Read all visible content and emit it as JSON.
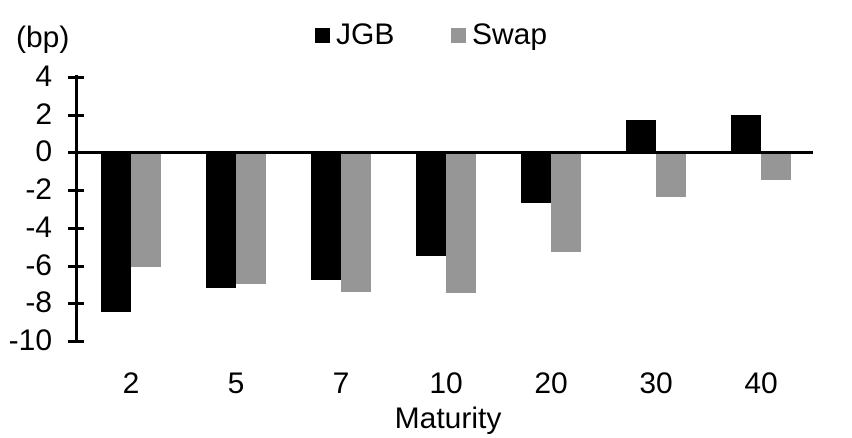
{
  "chart_data": {
    "type": "bar",
    "title": "",
    "unit_label": "(bp)",
    "xlabel": "Maturity",
    "categories": [
      "2",
      "5",
      "7",
      "10",
      "20",
      "30",
      "40"
    ],
    "series": [
      {
        "name": "JGB",
        "color": "#000000",
        "values": [
          -8.5,
          -7.2,
          -6.8,
          -5.5,
          -2.7,
          1.7,
          2.0
        ]
      },
      {
        "name": "Swap",
        "color": "#969696",
        "values": [
          -6.1,
          -7.0,
          -7.4,
          -7.5,
          -5.3,
          -2.4,
          -1.5
        ]
      }
    ],
    "ylim": [
      -10,
      4
    ],
    "yticks": [
      4,
      2,
      0,
      -2,
      -4,
      -6,
      -8,
      -10
    ],
    "grid": false,
    "legend_position": "top-center",
    "background_color": "#ffffff"
  }
}
